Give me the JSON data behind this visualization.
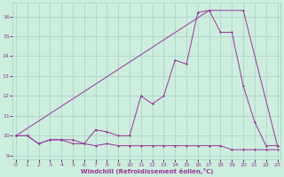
{
  "xlabel": "Windchill (Refroidissement éolien,°C)",
  "bg_color": "#cceedd",
  "grid_color": "#aacccc",
  "line_color": "#993399",
  "x_ticks": [
    0,
    1,
    2,
    3,
    4,
    5,
    6,
    7,
    8,
    9,
    10,
    11,
    12,
    13,
    14,
    15,
    16,
    17,
    18,
    19,
    20,
    21,
    22,
    23
  ],
  "y_ticks": [
    9,
    10,
    11,
    12,
    13,
    14,
    15,
    16
  ],
  "ylim": [
    8.8,
    16.7
  ],
  "xlim": [
    -0.3,
    23.3
  ],
  "line1_x": [
    0,
    1,
    2,
    3,
    4,
    5,
    6,
    7,
    8,
    9,
    10,
    11,
    12,
    13,
    14,
    15,
    16,
    17,
    18,
    19,
    20,
    21,
    22,
    23
  ],
  "line1_y": [
    10.0,
    10.0,
    9.6,
    9.8,
    9.8,
    9.8,
    9.6,
    9.5,
    9.6,
    9.5,
    9.5,
    9.5,
    9.5,
    9.5,
    9.5,
    9.5,
    9.5,
    9.5,
    9.5,
    9.3,
    9.3,
    9.3,
    9.3,
    9.3
  ],
  "line2_x": [
    0,
    17,
    20,
    23
  ],
  "line2_y": [
    10.0,
    16.3,
    16.3,
    9.5
  ],
  "line3_x": [
    0,
    1,
    2,
    3,
    4,
    5,
    6,
    7,
    8,
    9,
    10,
    11,
    12,
    13,
    14,
    15,
    16,
    17,
    18,
    19,
    20,
    21,
    22,
    23
  ],
  "line3_y": [
    10.0,
    10.0,
    9.6,
    9.8,
    9.8,
    9.6,
    9.6,
    10.3,
    10.2,
    10.0,
    10.0,
    12.0,
    11.6,
    12.0,
    13.8,
    13.6,
    16.2,
    16.3,
    15.2,
    15.2,
    12.5,
    10.7,
    9.5,
    9.5
  ],
  "line4_x": [
    0,
    23
  ],
  "line4_y": [
    10.0,
    9.5
  ]
}
